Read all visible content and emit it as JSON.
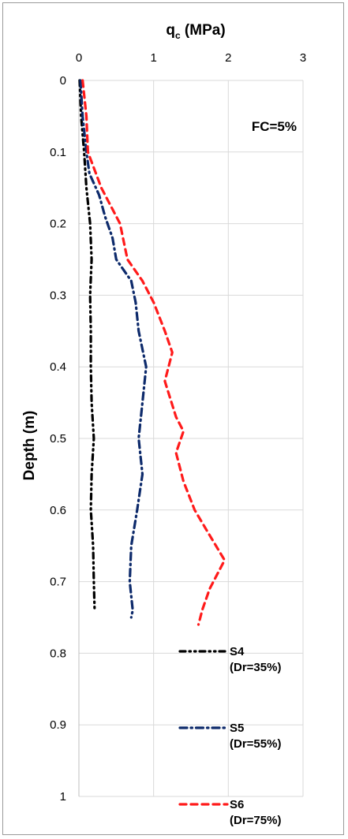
{
  "chart_data": {
    "type": "line",
    "title_main": "q",
    "title_sub": "c",
    "title_unit": " (MPa)",
    "ylabel": "Depth (m)",
    "annotation": "FC=5%",
    "xlim": [
      0,
      3
    ],
    "ylim": [
      0,
      1
    ],
    "y_inverted": true,
    "x_axis_position": "top",
    "xticks": [
      "0",
      "1",
      "2",
      "3"
    ],
    "yticks": [
      "0",
      "0.1",
      "0.2",
      "0.3",
      "0.4",
      "0.5",
      "0.6",
      "0.7",
      "0.8",
      "0.9",
      "1"
    ],
    "grid": true,
    "legend_position": "bottom-right",
    "series": [
      {
        "name": "S4",
        "name_sub": "(Dr=35%)",
        "color": "#000000",
        "style": "dash-dot-dot",
        "points": [
          [
            0.01,
            0.0
          ],
          [
            0.03,
            0.05
          ],
          [
            0.07,
            0.1
          ],
          [
            0.1,
            0.15
          ],
          [
            0.15,
            0.2
          ],
          [
            0.17,
            0.25
          ],
          [
            0.15,
            0.3
          ],
          [
            0.16,
            0.35
          ],
          [
            0.16,
            0.4
          ],
          [
            0.17,
            0.45
          ],
          [
            0.2,
            0.5
          ],
          [
            0.17,
            0.55
          ],
          [
            0.16,
            0.6
          ],
          [
            0.19,
            0.65
          ],
          [
            0.2,
            0.7
          ],
          [
            0.21,
            0.74
          ]
        ]
      },
      {
        "name": "S5",
        "name_sub": "(Dr=55%)",
        "color": "#0d2a6b",
        "style": "dash-dot",
        "points": [
          [
            0.02,
            0.0
          ],
          [
            0.05,
            0.05
          ],
          [
            0.1,
            0.1
          ],
          [
            0.14,
            0.13
          ],
          [
            0.27,
            0.16
          ],
          [
            0.35,
            0.19
          ],
          [
            0.45,
            0.22
          ],
          [
            0.5,
            0.25
          ],
          [
            0.7,
            0.28
          ],
          [
            0.76,
            0.31
          ],
          [
            0.8,
            0.35
          ],
          [
            0.9,
            0.4
          ],
          [
            0.85,
            0.45
          ],
          [
            0.8,
            0.5
          ],
          [
            0.85,
            0.55
          ],
          [
            0.78,
            0.6
          ],
          [
            0.7,
            0.65
          ],
          [
            0.68,
            0.7
          ],
          [
            0.72,
            0.74
          ],
          [
            0.7,
            0.75
          ]
        ]
      },
      {
        "name": "S6",
        "name_sub": "(Dr=75%)",
        "color": "#ff1a1a",
        "style": "dash",
        "points": [
          [
            0.05,
            0.0
          ],
          [
            0.1,
            0.05
          ],
          [
            0.12,
            0.1
          ],
          [
            0.3,
            0.15
          ],
          [
            0.55,
            0.2
          ],
          [
            0.65,
            0.25
          ],
          [
            0.85,
            0.28
          ],
          [
            1.0,
            0.31
          ],
          [
            1.15,
            0.35
          ],
          [
            1.25,
            0.38
          ],
          [
            1.15,
            0.42
          ],
          [
            1.3,
            0.47
          ],
          [
            1.4,
            0.49
          ],
          [
            1.3,
            0.52
          ],
          [
            1.4,
            0.56
          ],
          [
            1.55,
            0.6
          ],
          [
            1.72,
            0.63
          ],
          [
            1.95,
            0.67
          ],
          [
            1.75,
            0.71
          ],
          [
            1.65,
            0.74
          ],
          [
            1.6,
            0.76
          ]
        ]
      }
    ]
  }
}
